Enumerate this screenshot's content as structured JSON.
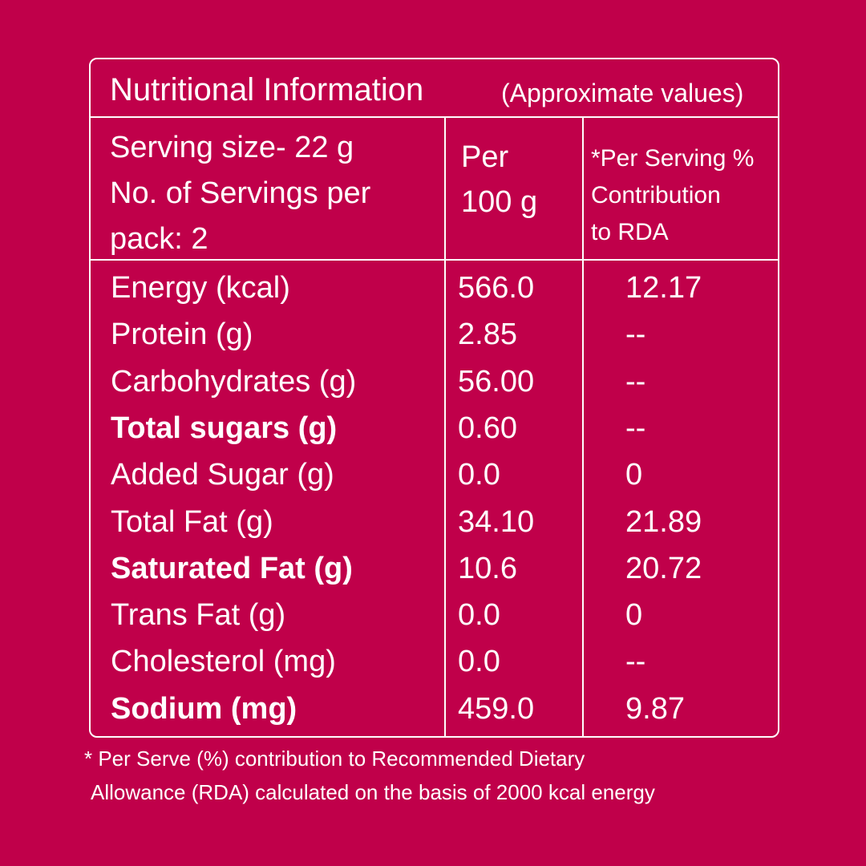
{
  "title": {
    "main": "Nutritional Information",
    "sub": "(Approximate values)"
  },
  "header": {
    "serving_lines": [
      "Serving size- 22 g",
      "No. of Servings per",
      "pack: 2"
    ],
    "per100_lines": [
      "Per",
      "100 g"
    ],
    "rda_lines": [
      "*Per Serving %",
      "Contribution",
      "to RDA"
    ]
  },
  "nutrients": [
    {
      "name": "Energy (kcal)",
      "value": "566.0",
      "rda": "12.17",
      "bold": false
    },
    {
      "name": "Protein (g)",
      "value": "2.85",
      "rda": "--",
      "bold": false
    },
    {
      "name": "Carbohydrates (g)",
      "value": "56.00",
      "rda": "--",
      "bold": false
    },
    {
      "name": "Total sugars (g)",
      "value": "0.60",
      "rda": "--",
      "bold": true
    },
    {
      "name": "Added Sugar (g)",
      "value": "0.0",
      "rda": "0",
      "bold": false
    },
    {
      "name": "Total Fat (g)",
      "value": "34.10",
      "rda": "21.89",
      "bold": false
    },
    {
      "name": "Saturated Fat (g)",
      "value": "10.6",
      "rda": "20.72",
      "bold": true
    },
    {
      "name": "Trans Fat (g)",
      "value": "0.0",
      "rda": "0",
      "bold": false
    },
    {
      "name": "Cholesterol (mg)",
      "value": "0.0",
      "rda": "--",
      "bold": false
    },
    {
      "name": "Sodium (mg)",
      "value": "459.0",
      "rda": "9.87",
      "bold": true
    }
  ],
  "footnote": {
    "line1": "* Per Serve (%) contribution to Recommended Dietary",
    "line2": "Allowance (RDA) calculated on the basis of 2000 kcal energy"
  },
  "colors": {
    "background": "#c0004a",
    "text": "#ffffff"
  }
}
